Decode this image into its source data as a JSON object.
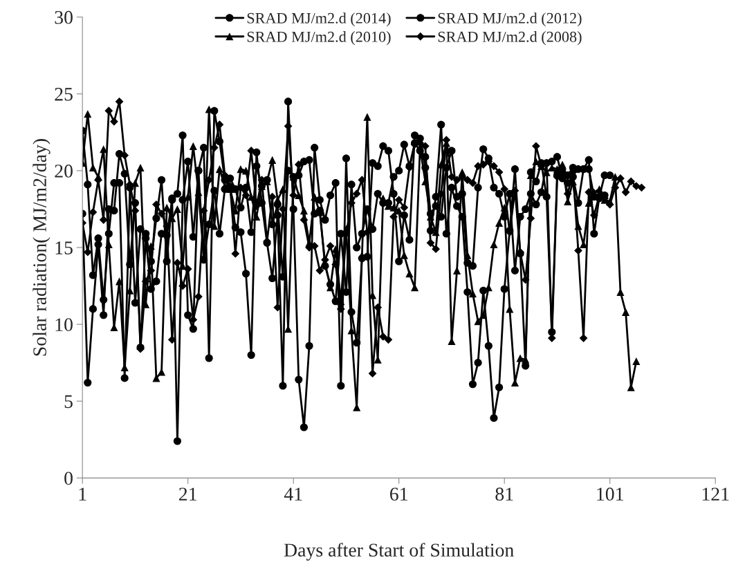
{
  "chart_data": {
    "type": "line",
    "xlabel": "Days after Start of Simulation",
    "ylabel": "Solar radiation( MJ/m2/day)",
    "xlim": [
      1,
      121
    ],
    "xticks": [
      1,
      21,
      41,
      61,
      81,
      101,
      121
    ],
    "ylim": [
      0,
      30
    ],
    "yticks": [
      0,
      5,
      10,
      15,
      20,
      25,
      30
    ],
    "grid": false,
    "legend": "top",
    "series": [
      {
        "name": "SRAD MJ/m2.d (2014)",
        "color": "#000000",
        "marker": "circle",
        "x": [
          1,
          2,
          3,
          4,
          5,
          6,
          7,
          8,
          9,
          10,
          11,
          12,
          13,
          14,
          15,
          16,
          17,
          18,
          19,
          20,
          21,
          22,
          23,
          24,
          25,
          26,
          27,
          28,
          29,
          30,
          31,
          32,
          33,
          34,
          35,
          36,
          37,
          38,
          39,
          40,
          41,
          42,
          43,
          44,
          45,
          46,
          47,
          48,
          49,
          50,
          51,
          52,
          53,
          54,
          55,
          56,
          57,
          58,
          59,
          60,
          61,
          62,
          63,
          64,
          65,
          66,
          67,
          68,
          69,
          70,
          71,
          72,
          73,
          74,
          75,
          76,
          77,
          78,
          79,
          80,
          81,
          82,
          83,
          84,
          85,
          86,
          87,
          88,
          89,
          90,
          91,
          92,
          93,
          94,
          95,
          96,
          97,
          98,
          99,
          100,
          101
        ],
        "values": [
          22.6,
          19.1,
          13.2,
          15.6,
          11.6,
          15.9,
          19.2,
          19.2,
          6.5,
          18.9,
          11.4,
          16.2,
          15.9,
          14.1,
          16.9,
          19.4,
          14.1,
          18.2,
          18.5,
          22.3,
          10.6,
          9.7,
          20.0,
          21.5,
          7.8,
          23.9,
          21.9,
          19.4,
          18.9,
          16.3,
          16.0,
          13.3,
          8.0,
          21.2,
          17.9,
          15.3,
          13.0,
          17.1,
          6.0,
          24.5,
          17.5,
          6.4,
          3.3,
          8.6,
          21.5,
          18.1,
          16.8,
          18.4,
          19.2,
          6.0,
          20.8,
          10.8,
          8.8,
          14.3,
          14.4,
          20.5,
          20.3,
          21.6,
          21.3,
          18.5,
          14.1,
          17.1,
          15.5,
          22.3,
          22.1,
          20.2,
          16.1,
          18.3,
          23.0,
          15.9,
          18.9,
          17.7,
          17.0,
          12.1,
          6.1,
          7.5,
          12.2,
          8.6,
          3.9,
          5.9,
          12.3,
          16.1,
          20.1,
          14.6,
          7.3,
          19.9,
          19.3,
          20.5,
          18.3,
          9.5,
          19.7,
          19.9,
          19.7,
          20.2,
          20.1,
          20.1,
          20.7,
          15.9,
          18.3,
          19.7,
          19.7
        ]
      },
      {
        "name": "SRAD MJ/m2.d (2012)",
        "color": "#000000",
        "marker": "circle",
        "x": [
          1,
          2,
          3,
          4,
          5,
          6,
          7,
          8,
          9,
          10,
          11,
          12,
          13,
          14,
          15,
          16,
          17,
          18,
          19,
          20,
          21,
          22,
          23,
          24,
          25,
          26,
          27,
          28,
          29,
          30,
          31,
          32,
          33,
          34,
          35,
          36,
          37,
          38,
          39,
          40,
          41,
          42,
          43,
          44,
          45,
          46,
          47,
          48,
          49,
          50,
          51,
          52,
          53,
          54,
          55,
          56,
          57,
          58,
          59,
          60,
          61,
          62,
          63,
          64,
          65,
          66,
          67,
          68,
          69,
          70,
          71,
          72,
          73,
          74,
          75,
          76,
          77,
          78,
          79,
          80,
          81,
          82,
          83,
          84,
          85,
          86,
          87,
          88,
          89,
          90,
          91,
          92,
          93,
          94,
          95,
          96,
          97,
          98,
          99,
          100
        ],
        "values": [
          17.2,
          6.2,
          11.0,
          15.2,
          10.6,
          17.5,
          17.4,
          21.1,
          19.8,
          13.9,
          17.9,
          8.5,
          15.6,
          12.3,
          12.8,
          15.9,
          15.8,
          18.1,
          2.4,
          18.1,
          20.6,
          15.7,
          20.0,
          14.2,
          16.5,
          18.7,
          15.9,
          18.8,
          19.5,
          18.8,
          17.6,
          18.9,
          16.0,
          20.3,
          19.0,
          19.4,
          16.5,
          17.8,
          13.1,
          20.0,
          19.6,
          19.7,
          20.6,
          20.7,
          17.2,
          17.4,
          13.8,
          12.6,
          11.5,
          15.9,
          12.1,
          19.1,
          15.0,
          15.9,
          17.5,
          16.2,
          18.5,
          17.9,
          17.9,
          19.6,
          20.0,
          21.7,
          20.3,
          21.8,
          21.3,
          20.9,
          17.2,
          17.7,
          17.0,
          20.2,
          21.3,
          18.3,
          18.5,
          14.0,
          13.8,
          18.9,
          21.4,
          20.8,
          18.9,
          18.5,
          17.0,
          18.5,
          13.5,
          17.0,
          17.5,
          18.5,
          17.8,
          18.6,
          20.5,
          20.6,
          20.9,
          19.5,
          19.2,
          19.6,
          17.9,
          20.1,
          20.1,
          18.3,
          18.2,
          18.4
        ]
      },
      {
        "name": "SRAD MJ/m2.d (2010)",
        "color": "#000000",
        "marker": "triangle",
        "x": [
          1,
          2,
          3,
          4,
          5,
          6,
          7,
          8,
          9,
          10,
          11,
          12,
          13,
          14,
          15,
          16,
          17,
          18,
          19,
          20,
          21,
          22,
          23,
          24,
          25,
          26,
          27,
          28,
          29,
          30,
          31,
          32,
          33,
          34,
          35,
          36,
          37,
          38,
          39,
          40,
          41,
          42,
          43,
          44,
          45,
          46,
          47,
          48,
          49,
          50,
          51,
          52,
          53,
          54,
          55,
          56,
          57,
          58,
          59,
          60,
          61,
          62,
          63,
          64,
          65,
          66,
          67,
          68,
          69,
          70,
          71,
          72,
          73,
          74,
          75,
          76,
          77,
          78,
          79,
          80,
          81,
          82,
          83,
          84,
          85,
          86,
          87,
          88,
          89,
          90,
          91,
          92,
          93,
          94,
          95,
          96,
          97,
          98,
          99,
          100,
          101,
          102,
          103,
          104,
          105,
          106
        ],
        "values": [
          20.5,
          23.7,
          20.2,
          19.6,
          21.4,
          15.2,
          9.8,
          12.8,
          7.2,
          12.2,
          19.2,
          20.2,
          11.3,
          15.1,
          6.5,
          6.9,
          17.6,
          16.9,
          17.5,
          13.8,
          18.3,
          21.6,
          18.6,
          14.4,
          24.0,
          16.4,
          20.1,
          19.0,
          18.8,
          17.4,
          20.1,
          20.0,
          18.3,
          17.0,
          19.0,
          19.3,
          20.7,
          18.1,
          18.8,
          9.7,
          19.6,
          18.4,
          17.4,
          15.3,
          18.3,
          17.3,
          14.0,
          12.4,
          14.9,
          11.5,
          16.2,
          9.6,
          4.6,
          14.5,
          23.5,
          11.9,
          7.7,
          18.2,
          17.7,
          17.6,
          17.4,
          14.5,
          13.3,
          12.4,
          21.5,
          19.3,
          17.0,
          16.0,
          20.4,
          21.8,
          8.9,
          13.5,
          19.9,
          14.5,
          12.0,
          10.2,
          10.6,
          12.4,
          15.2,
          16.6,
          17.6,
          11.0,
          6.2,
          7.8,
          7.7,
          19.7,
          20.6,
          20.3,
          19.9,
          20.2,
          20.1,
          20.4,
          18.0,
          19.3,
          16.4,
          15.2,
          17.9,
          18.6,
          18.8,
          18.1,
          18.0,
          19.6,
          12.1,
          10.8,
          5.9,
          7.6
        ]
      },
      {
        "name": "SRAD MJ/m2.d (2008)",
        "color": "#000000",
        "marker": "diamond",
        "x": [
          1,
          2,
          3,
          4,
          5,
          6,
          7,
          8,
          9,
          10,
          11,
          12,
          13,
          14,
          15,
          16,
          17,
          18,
          19,
          20,
          21,
          22,
          23,
          24,
          25,
          26,
          27,
          28,
          29,
          30,
          31,
          32,
          33,
          34,
          35,
          36,
          37,
          38,
          39,
          40,
          41,
          42,
          43,
          44,
          45,
          46,
          47,
          48,
          49,
          50,
          51,
          52,
          53,
          54,
          55,
          56,
          57,
          58,
          59,
          60,
          61,
          62,
          63,
          64,
          65,
          66,
          67,
          68,
          69,
          70,
          71,
          72,
          73,
          74,
          75,
          76,
          77,
          78,
          79,
          80,
          81,
          82,
          83,
          84,
          85,
          86,
          87,
          88,
          89,
          90,
          91,
          92,
          93,
          94,
          95,
          96,
          97,
          98,
          99,
          100,
          101,
          102,
          103,
          104,
          105,
          106,
          107
        ],
        "values": [
          16.6,
          14.7,
          17.3,
          19.4,
          16.8,
          23.9,
          23.2,
          24.5,
          21.0,
          19.1,
          17.4,
          8.4,
          12.8,
          13.5,
          17.8,
          17.2,
          16.4,
          9.0,
          14.0,
          12.5,
          13.6,
          10.3,
          11.8,
          17.4,
          19.4,
          21.5,
          23.0,
          19.7,
          19.0,
          14.6,
          18.9,
          18.4,
          21.3,
          17.7,
          19.4,
          15.4,
          18.3,
          11.1,
          17.5,
          22.9,
          18.4,
          20.4,
          16.8,
          15.0,
          15.1,
          13.5,
          14.2,
          15.1,
          13.9,
          11.0,
          15.9,
          17.9,
          18.5,
          19.4,
          16.0,
          6.8,
          11.1,
          9.2,
          9.0,
          17.0,
          18.1,
          17.6,
          20.2,
          21.7,
          21.8,
          21.6,
          15.3,
          14.9,
          18.5,
          22.0,
          19.6,
          19.4,
          19.6,
          19.4,
          19.2,
          20.3,
          20.4,
          20.6,
          20.3,
          19.9,
          18.8,
          16.0,
          18.7,
          14.7,
          12.9,
          16.9,
          21.6,
          20.3,
          20.5,
          9.1,
          19.6,
          20.1,
          18.5,
          19.9,
          14.8,
          9.1,
          18.6,
          17.1,
          18.4,
          18.2,
          17.8,
          18.9,
          19.5,
          18.6,
          19.3,
          19.0,
          18.9
        ]
      }
    ]
  }
}
